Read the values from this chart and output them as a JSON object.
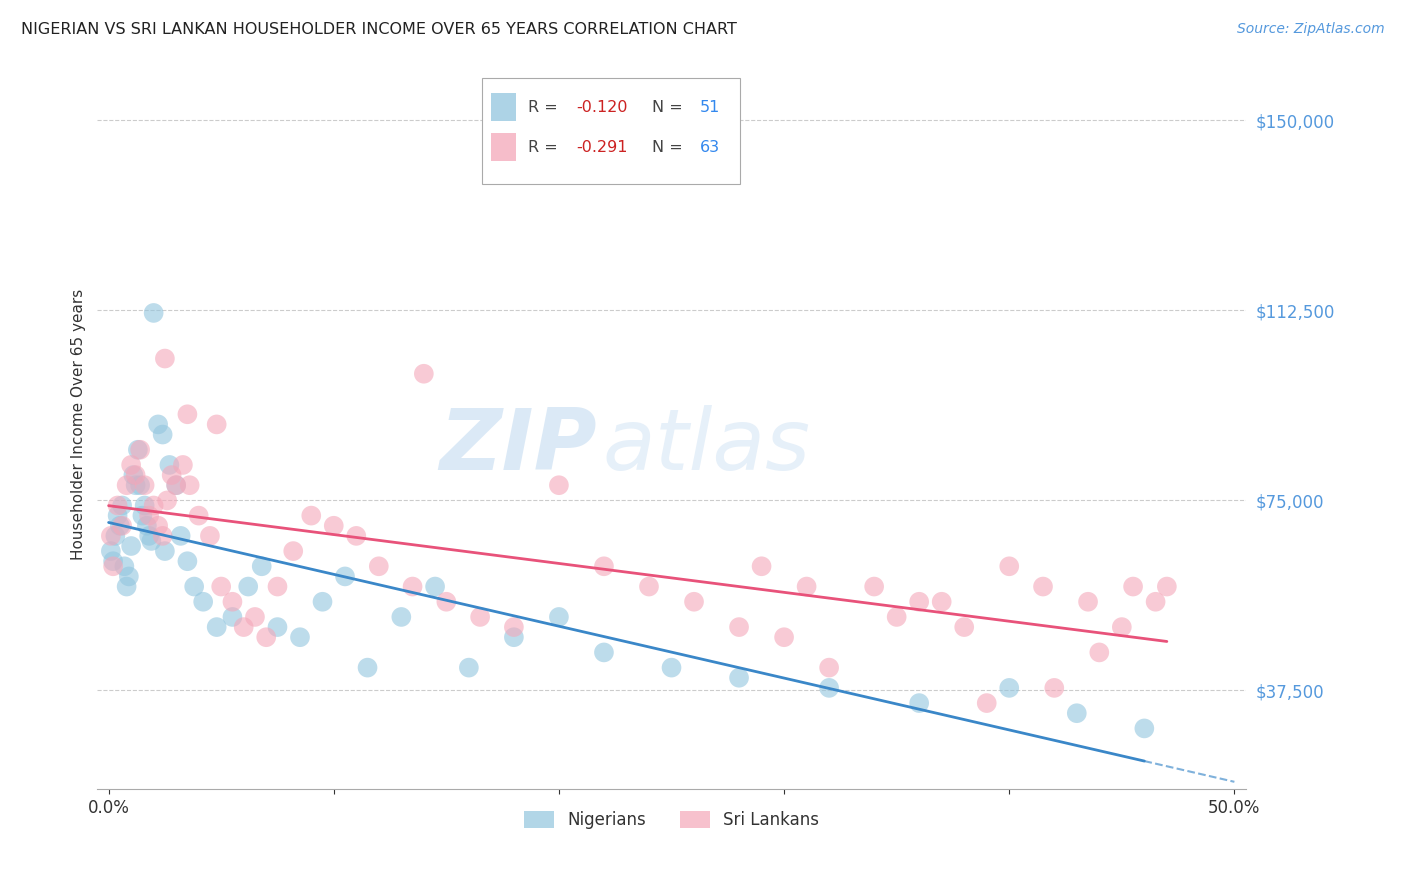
{
  "title": "NIGERIAN VS SRI LANKAN HOUSEHOLDER INCOME OVER 65 YEARS CORRELATION CHART",
  "source": "Source: ZipAtlas.com",
  "ylabel": "Householder Income Over 65 years",
  "xlim": [
    0.0,
    0.5
  ],
  "ylim": [
    18000,
    162000
  ],
  "yticks": [
    37500,
    75000,
    112500,
    150000
  ],
  "ytick_labels": [
    "$37,500",
    "$75,000",
    "$112,500",
    "$150,000"
  ],
  "xtick_labels": [
    "0.0%",
    "",
    "",
    "",
    "",
    "50.0%"
  ],
  "nigerian_R": -0.12,
  "nigerian_N": 51,
  "srilankan_R": -0.291,
  "srilankan_N": 63,
  "nigerian_color": "#92c5de",
  "srilankan_color": "#f4a7b9",
  "nigerian_line_color": "#3a87c8",
  "srilankan_line_color": "#e8527a",
  "background_color": "#ffffff",
  "nigerian_x": [
    0.001,
    0.002,
    0.003,
    0.004,
    0.005,
    0.006,
    0.007,
    0.008,
    0.009,
    0.01,
    0.011,
    0.012,
    0.013,
    0.014,
    0.015,
    0.016,
    0.017,
    0.018,
    0.019,
    0.02,
    0.022,
    0.024,
    0.025,
    0.027,
    0.03,
    0.032,
    0.035,
    0.038,
    0.042,
    0.048,
    0.055,
    0.062,
    0.068,
    0.075,
    0.085,
    0.095,
    0.105,
    0.115,
    0.13,
    0.145,
    0.16,
    0.18,
    0.2,
    0.22,
    0.25,
    0.28,
    0.32,
    0.36,
    0.4,
    0.43,
    0.46
  ],
  "nigerian_y": [
    65000,
    63000,
    68000,
    72000,
    70000,
    74000,
    62000,
    58000,
    60000,
    66000,
    80000,
    78000,
    85000,
    78000,
    72000,
    74000,
    70000,
    68000,
    67000,
    112000,
    90000,
    88000,
    65000,
    82000,
    78000,
    68000,
    63000,
    58000,
    55000,
    50000,
    52000,
    58000,
    62000,
    50000,
    48000,
    55000,
    60000,
    42000,
    52000,
    58000,
    42000,
    48000,
    52000,
    45000,
    42000,
    40000,
    38000,
    35000,
    38000,
    33000,
    30000
  ],
  "srilankan_x": [
    0.001,
    0.002,
    0.004,
    0.006,
    0.008,
    0.01,
    0.012,
    0.014,
    0.016,
    0.018,
    0.02,
    0.022,
    0.024,
    0.026,
    0.028,
    0.03,
    0.033,
    0.036,
    0.04,
    0.045,
    0.05,
    0.055,
    0.06,
    0.065,
    0.07,
    0.075,
    0.082,
    0.09,
    0.1,
    0.11,
    0.12,
    0.135,
    0.15,
    0.165,
    0.18,
    0.2,
    0.22,
    0.24,
    0.26,
    0.28,
    0.3,
    0.32,
    0.34,
    0.36,
    0.38,
    0.4,
    0.42,
    0.44,
    0.455,
    0.465,
    0.025,
    0.035,
    0.048,
    0.14,
    0.29,
    0.31,
    0.35,
    0.37,
    0.39,
    0.415,
    0.435,
    0.45,
    0.47
  ],
  "srilankan_y": [
    68000,
    62000,
    74000,
    70000,
    78000,
    82000,
    80000,
    85000,
    78000,
    72000,
    74000,
    70000,
    68000,
    75000,
    80000,
    78000,
    82000,
    78000,
    72000,
    68000,
    58000,
    55000,
    50000,
    52000,
    48000,
    58000,
    65000,
    72000,
    70000,
    68000,
    62000,
    58000,
    55000,
    52000,
    50000,
    78000,
    62000,
    58000,
    55000,
    50000,
    48000,
    42000,
    58000,
    55000,
    50000,
    62000,
    38000,
    45000,
    58000,
    55000,
    103000,
    92000,
    90000,
    100000,
    62000,
    58000,
    52000,
    55000,
    35000,
    58000,
    55000,
    50000,
    58000
  ]
}
